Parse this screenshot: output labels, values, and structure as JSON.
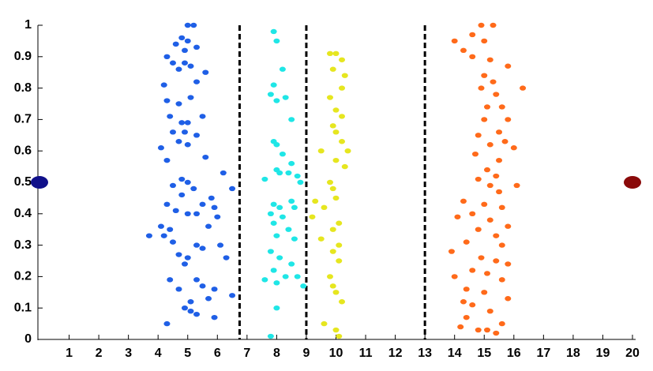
{
  "chart_data": {
    "type": "scatter",
    "xlim": [
      0,
      20
    ],
    "ylim": [
      0,
      1
    ],
    "xticks": [
      1,
      2,
      3,
      4,
      5,
      6,
      7,
      8,
      9,
      10,
      11,
      12,
      13,
      14,
      15,
      16,
      17,
      18,
      19,
      20
    ],
    "yticks": [
      0,
      0.1,
      0.2,
      0.3,
      0.4,
      0.5,
      0.6,
      0.7,
      0.8,
      0.9,
      1
    ],
    "vlines": [
      6.75,
      9,
      13
    ],
    "vline_color": "#000000",
    "series": [
      {
        "color": "#1f5fe6",
        "marker": "small",
        "x": [
          5.0,
          5.2,
          4.8,
          4.6,
          5.0,
          4.9,
          5.3,
          4.3,
          4.5,
          4.9,
          5.1,
          4.7,
          5.6,
          4.2,
          5.3,
          4.3,
          4.7,
          5.1,
          4.4,
          4.8,
          5.0,
          5.5,
          4.5,
          4.9,
          5.3,
          4.1,
          4.7,
          5.0,
          5.6,
          4.3,
          6.2,
          4.8,
          5.0,
          4.5,
          5.2,
          6.5,
          4.8,
          5.8,
          4.3,
          5.5,
          5.9,
          4.6,
          5.0,
          5.3,
          6.0,
          4.1,
          4.4,
          5.7,
          3.7,
          4.2,
          4.5,
          5.3,
          5.5,
          6.1,
          4.7,
          5.0,
          4.9,
          6.3,
          4.4,
          5.3,
          5.5,
          4.7,
          5.9,
          5.1,
          5.7,
          6.5,
          4.9,
          5.1,
          5.3,
          5.9,
          4.3
        ],
        "values": [
          1.0,
          1.0,
          0.96,
          0.94,
          0.95,
          0.92,
          0.93,
          0.9,
          0.88,
          0.88,
          0.87,
          0.86,
          0.85,
          0.81,
          0.82,
          0.76,
          0.75,
          0.77,
          0.71,
          0.69,
          0.69,
          0.71,
          0.66,
          0.66,
          0.65,
          0.61,
          0.63,
          0.62,
          0.58,
          0.57,
          0.53,
          0.51,
          0.5,
          0.49,
          0.48,
          0.48,
          0.46,
          0.45,
          0.43,
          0.43,
          0.42,
          0.41,
          0.4,
          0.4,
          0.39,
          0.36,
          0.35,
          0.36,
          0.33,
          0.33,
          0.31,
          0.3,
          0.29,
          0.3,
          0.27,
          0.26,
          0.24,
          0.26,
          0.19,
          0.19,
          0.17,
          0.16,
          0.16,
          0.12,
          0.13,
          0.14,
          0.1,
          0.09,
          0.08,
          0.07,
          0.05
        ]
      },
      {
        "color": "#1fe6e6",
        "marker": "small",
        "x": [
          7.9,
          8.0,
          8.2,
          7.9,
          8.3,
          8.0,
          7.8,
          8.5,
          7.9,
          8.0,
          8.2,
          8.5,
          8.0,
          8.1,
          8.4,
          8.7,
          7.6,
          8.8,
          8.5,
          7.9,
          8.1,
          8.6,
          7.8,
          8.2,
          7.9,
          8.4,
          8.0,
          8.6,
          7.8,
          8.1,
          8.5,
          7.9,
          8.3,
          7.6,
          8.0,
          8.7,
          8.9,
          8.0,
          7.8
        ],
        "values": [
          0.98,
          0.95,
          0.86,
          0.81,
          0.77,
          0.76,
          0.78,
          0.7,
          0.63,
          0.62,
          0.59,
          0.56,
          0.54,
          0.53,
          0.53,
          0.52,
          0.51,
          0.5,
          0.44,
          0.43,
          0.42,
          0.42,
          0.4,
          0.39,
          0.37,
          0.35,
          0.33,
          0.32,
          0.28,
          0.26,
          0.24,
          0.22,
          0.2,
          0.19,
          0.18,
          0.2,
          0.17,
          0.1,
          0.01
        ]
      },
      {
        "color": "#e6e61f",
        "marker": "small",
        "x": [
          9.8,
          10.0,
          10.2,
          10.3,
          9.9,
          10.2,
          9.8,
          10.0,
          10.2,
          9.9,
          10.0,
          10.2,
          9.5,
          10.4,
          10.0,
          10.3,
          9.8,
          9.9,
          9.3,
          10.0,
          9.6,
          9.2,
          10.1,
          9.9,
          9.5,
          10.1,
          9.9,
          10.1,
          9.8,
          9.9,
          10.0,
          10.2,
          9.6,
          10.0,
          10.1
        ],
        "values": [
          0.91,
          0.91,
          0.89,
          0.84,
          0.86,
          0.8,
          0.77,
          0.73,
          0.71,
          0.68,
          0.66,
          0.63,
          0.6,
          0.6,
          0.57,
          0.55,
          0.5,
          0.48,
          0.44,
          0.45,
          0.42,
          0.39,
          0.37,
          0.35,
          0.32,
          0.3,
          0.28,
          0.25,
          0.2,
          0.17,
          0.15,
          0.12,
          0.05,
          0.03,
          0.01
        ]
      },
      {
        "color": "#ff6a1a",
        "marker": "small",
        "x": [
          14.9,
          15.3,
          14.6,
          15.0,
          14.0,
          14.3,
          14.6,
          15.2,
          15.8,
          15.0,
          15.3,
          14.9,
          16.3,
          15.4,
          15.1,
          15.6,
          15.8,
          15.0,
          15.5,
          14.8,
          15.7,
          15.2,
          14.7,
          16.0,
          15.5,
          15.1,
          15.4,
          14.8,
          15.2,
          16.1,
          15.5,
          14.3,
          15.0,
          15.6,
          14.6,
          14.1,
          15.2,
          15.8,
          14.8,
          15.4,
          14.4,
          15.6,
          13.9,
          14.9,
          15.4,
          15.8,
          14.6,
          15.1,
          14.0,
          15.6,
          14.4,
          15.0,
          15.8,
          14.3,
          14.6,
          15.2,
          14.4,
          15.6,
          14.8,
          15.1,
          15.4,
          14.2
        ],
        "values": [
          1.0,
          1.0,
          0.97,
          0.95,
          0.95,
          0.92,
          0.9,
          0.89,
          0.87,
          0.84,
          0.82,
          0.8,
          0.8,
          0.78,
          0.74,
          0.74,
          0.7,
          0.7,
          0.66,
          0.65,
          0.63,
          0.62,
          0.59,
          0.61,
          0.57,
          0.54,
          0.52,
          0.51,
          0.49,
          0.49,
          0.47,
          0.44,
          0.43,
          0.42,
          0.4,
          0.39,
          0.38,
          0.36,
          0.35,
          0.33,
          0.31,
          0.3,
          0.28,
          0.26,
          0.25,
          0.24,
          0.22,
          0.21,
          0.2,
          0.19,
          0.16,
          0.15,
          0.13,
          0.12,
          0.11,
          0.09,
          0.07,
          0.05,
          0.03,
          0.03,
          0.02,
          0.04
        ]
      },
      {
        "color": "#10108a",
        "marker": "large",
        "x": [
          0
        ],
        "values": [
          0.5
        ]
      },
      {
        "color": "#8a0a0a",
        "marker": "large",
        "x": [
          20
        ],
        "values": [
          0.5
        ]
      }
    ]
  }
}
